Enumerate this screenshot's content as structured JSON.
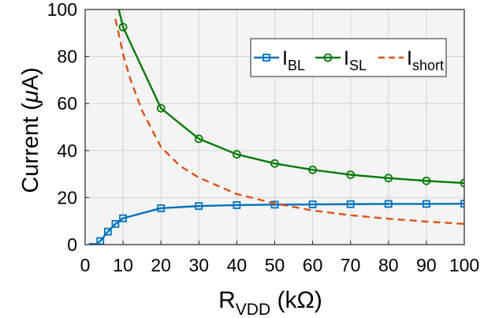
{
  "chart_data": {
    "type": "line",
    "xlabel": "R",
    "xlabel_sub": "VDD",
    "xlabel_unit": " (kΩ)",
    "ylabel_prefix": "Current (",
    "ylabel_mu": "μ",
    "ylabel_suffix": "A)",
    "xlim": [
      0,
      100
    ],
    "ylim": [
      0,
      100
    ],
    "xticks": [
      0,
      10,
      20,
      30,
      40,
      50,
      60,
      70,
      80,
      90,
      100
    ],
    "yticks": [
      0,
      20,
      40,
      60,
      80,
      100
    ],
    "grid": true,
    "legend_position": "top-right",
    "series": [
      {
        "name": "I",
        "name_sub": "BL",
        "color": "#0072BD",
        "style": "solid",
        "marker": "square",
        "x": [
          2,
          4,
          6,
          8,
          10,
          20,
          30,
          40,
          50,
          60,
          70,
          80,
          90,
          100
        ],
        "y": [
          -1,
          1.5,
          5.5,
          8.8,
          11.2,
          15.5,
          16.4,
          16.8,
          17.0,
          17.1,
          17.2,
          17.3,
          17.3,
          17.4
        ]
      },
      {
        "name": "I",
        "name_sub": "SL",
        "color": "#077A07",
        "style": "solid",
        "marker": "circle",
        "x": [
          8,
          10,
          20,
          30,
          40,
          50,
          60,
          70,
          80,
          90,
          100
        ],
        "y": [
          106,
          92.5,
          58,
          45,
          38.4,
          34.5,
          31.8,
          29.7,
          28.3,
          27.1,
          26.2
        ]
      },
      {
        "name": "I",
        "name_sub": "short",
        "color": "#D95319",
        "style": "dashed",
        "marker": "none",
        "x": [
          8,
          10,
          12,
          15,
          20,
          25,
          30,
          40,
          50,
          60,
          70,
          80,
          90,
          100
        ],
        "y": [
          96,
          81,
          70,
          57,
          41.5,
          33.5,
          28.5,
          21.5,
          17.5,
          14.5,
          12.5,
          11.0,
          9.8,
          8.8
        ]
      }
    ]
  }
}
